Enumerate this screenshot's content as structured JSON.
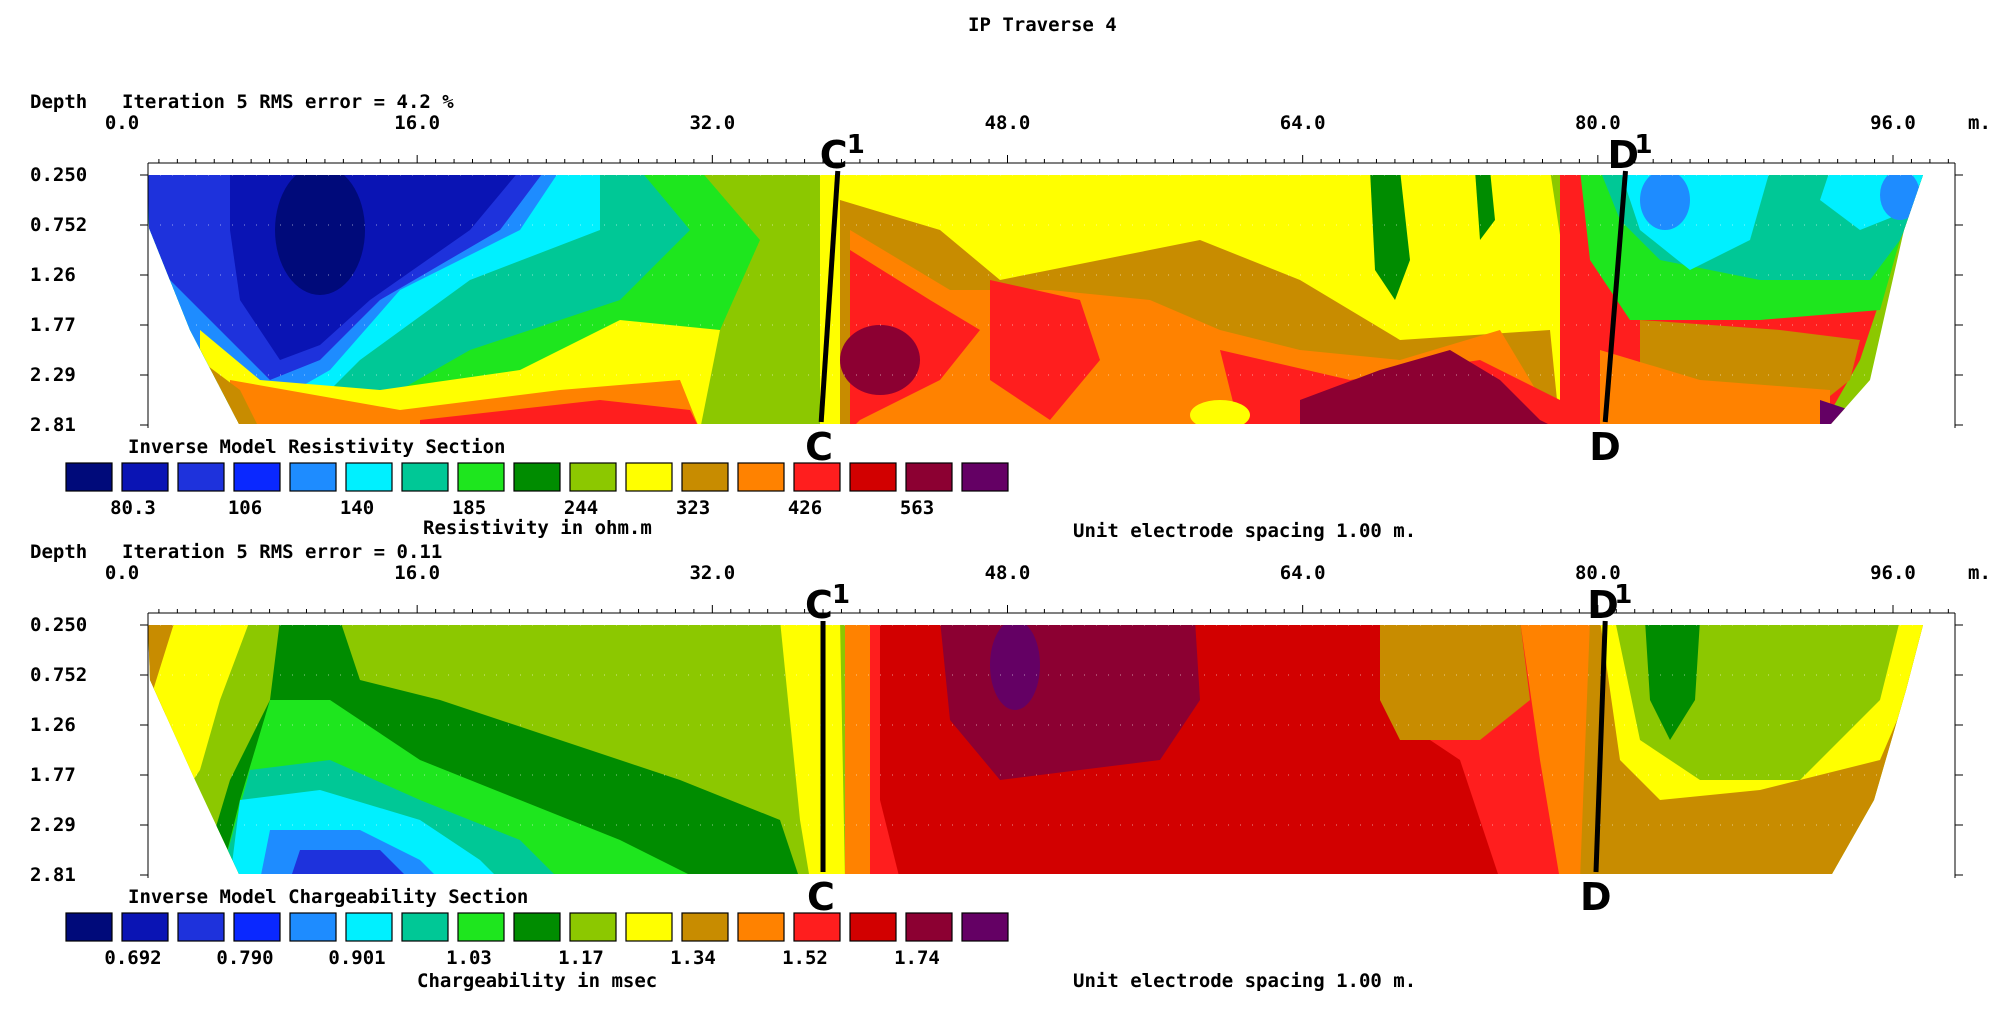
{
  "title": "IP Traverse 4",
  "chart_data": [
    {
      "type": "heatmap",
      "title": "Inverse Model Resistivity Section",
      "header": "Iteration 5 RMS error = 4.2 %",
      "depth_label": "Depth",
      "x_unit": "m.",
      "x_ticks": [
        "0.0",
        "16.0",
        "32.0",
        "48.0",
        "64.0",
        "80.0",
        "96.0"
      ],
      "depth_ticks": [
        "0.250",
        "0.752",
        "1.26",
        "1.77",
        "2.29",
        "2.81"
      ],
      "xlim": [
        0,
        102
      ],
      "depth_range": [
        0.25,
        2.81
      ],
      "legend_colors": [
        "#000a7a",
        "#0a14b4",
        "#1e32dc",
        "#0a28ff",
        "#1e8cff",
        "#00f0ff",
        "#00c896",
        "#1ee61e",
        "#008c00",
        "#8cc800",
        "#ffff00",
        "#c88c00",
        "#ff8200",
        "#ff1e1e",
        "#d20000",
        "#8c0032",
        "#640064"
      ],
      "legend_values": [
        "80.3",
        "106",
        "140",
        "185",
        "244",
        "323",
        "426",
        "563"
      ],
      "legend_label": "Resistivity in ohm.m",
      "spacing_note": "Unit electrode spacing 1.00 m.",
      "markers": [
        {
          "top": "C",
          "top_sup": "1",
          "bottom": "C",
          "x_top": 38.8,
          "x_bottom": 37.9
        },
        {
          "top": "D",
          "top_sup": "1",
          "bottom": "D",
          "x_top": 81.5,
          "x_bottom": 80.4
        }
      ]
    },
    {
      "type": "heatmap",
      "title": "Inverse Model Chargeability Section",
      "header": "Iteration 5 RMS error = 0.11",
      "depth_label": "Depth",
      "x_unit": "m.",
      "x_ticks": [
        "0.0",
        "16.0",
        "32.0",
        "48.0",
        "64.0",
        "80.0",
        "96.0"
      ],
      "depth_ticks": [
        "0.250",
        "0.752",
        "1.26",
        "1.77",
        "2.29",
        "2.81"
      ],
      "xlim": [
        0,
        102
      ],
      "depth_range": [
        0.25,
        2.81
      ],
      "legend_colors": [
        "#000a7a",
        "#0a14b4",
        "#1e32dc",
        "#0a28ff",
        "#1e8cff",
        "#00f0ff",
        "#00c896",
        "#1ee61e",
        "#008c00",
        "#8cc800",
        "#ffff00",
        "#c88c00",
        "#ff8200",
        "#ff1e1e",
        "#d20000",
        "#8c0032",
        "#640064"
      ],
      "legend_values": [
        "0.692",
        "0.790",
        "0.901",
        "1.03",
        "1.17",
        "1.34",
        "1.52",
        "1.74"
      ],
      "legend_label": "Chargeability in msec",
      "spacing_note": "Unit electrode spacing 1.00 m.",
      "markers": [
        {
          "top": "C",
          "top_sup": "1",
          "bottom": "C",
          "x_top": 38.0,
          "x_bottom": 38.0
        },
        {
          "top": "D",
          "top_sup": "1",
          "bottom": "D",
          "x_top": 80.4,
          "x_bottom": 79.9
        }
      ]
    }
  ]
}
